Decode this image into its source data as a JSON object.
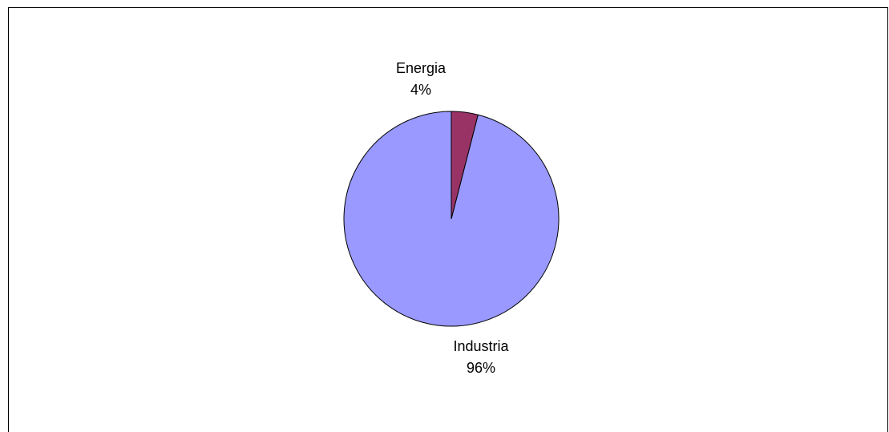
{
  "chart_data": {
    "type": "pie",
    "title": "",
    "slices": [
      {
        "label": "Industria",
        "value": 96,
        "percent_label": "96%",
        "color": "#9999FF"
      },
      {
        "label": "Energia",
        "value": 4,
        "percent_label": "4%",
        "color": "#993366"
      }
    ],
    "start_angle": "12 o'clock",
    "direction": "clockwise",
    "border_color": "#000000",
    "legend": "none"
  }
}
